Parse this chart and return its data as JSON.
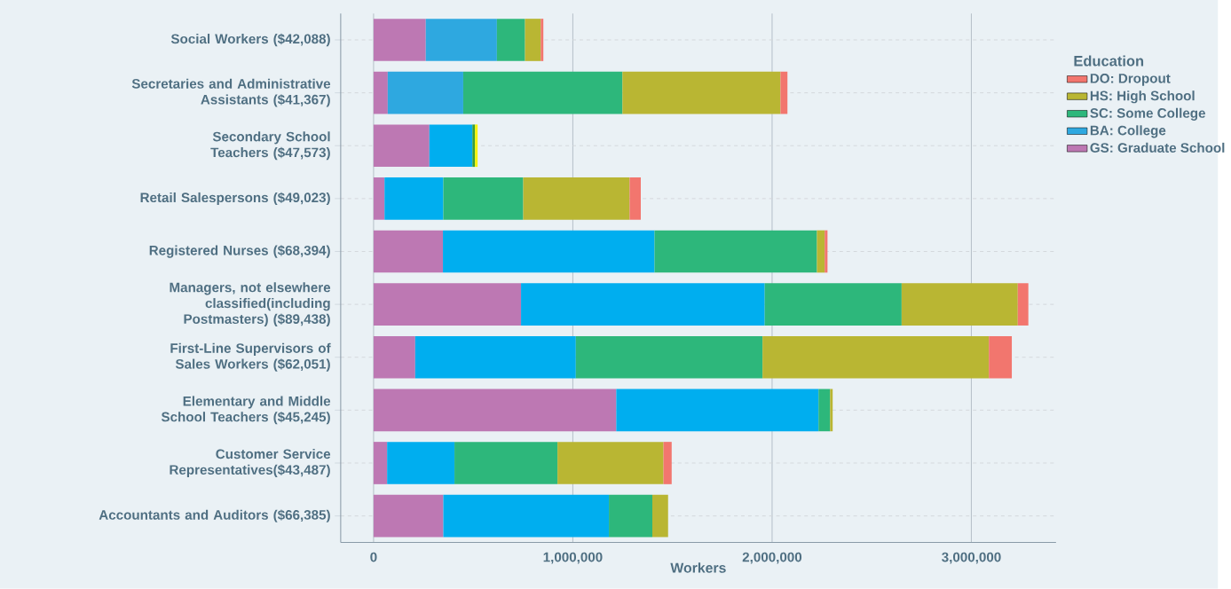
{
  "chart_data": {
    "type": "bar",
    "orientation": "horizontal",
    "stacked": true,
    "xlabel": "Workers",
    "legend_title": "Education",
    "legend": "right",
    "grid": true,
    "categories": [
      "Social Workers ($42,088)",
      "Secretaries and Administrative Assistants ($41,367)",
      "Secondary School Teachers ($47,573)",
      "Retail Salespersons ($49,023)",
      "Registered Nurses ($68,394)",
      "Managers, not elsewhere classified(including Postmasters) ($89,438)",
      "First-Line Supervisors of Sales Workers ($62,051)",
      "Elementary and Middle School Teachers ($45,245)",
      "Customer Service Representatives($43,487)",
      "Accountants and Auditors ($66,385)"
    ],
    "series": [
      {
        "name": "GS: Graduate School",
        "color": "#bd78b3",
        "values": [
          262000,
          71000,
          280000,
          55000,
          348000,
          740000,
          209000,
          1218000,
          68000,
          350000
        ]
      },
      {
        "name": "BA: College",
        "color": "#2ea8e0",
        "colors": [
          "#2ea8e0",
          "#2ea8e0",
          "#00aeef",
          "#00aeef",
          "#00aeef",
          "#00aeef",
          "#00aeef",
          "#00aeef",
          "#00aeef",
          "#00aeef"
        ],
        "values": [
          357000,
          379000,
          216000,
          295000,
          1062000,
          1223000,
          806000,
          1015000,
          338000,
          831000
        ]
      },
      {
        "name": "SC: Some College",
        "color": "#2db77b",
        "colors": [
          "#2db77b",
          "#2db77b",
          "#3a9e3a",
          "#2db77b",
          "#2db77b",
          "#2db77b",
          "#2db77b",
          "#2db77b",
          "#2db77b",
          "#2db77b"
        ],
        "values": [
          141000,
          799000,
          13000,
          401000,
          815000,
          687000,
          937000,
          58000,
          517000,
          218000
        ]
      },
      {
        "name": "HS: High School",
        "color": "#b9b633",
        "colors": [
          "#b9b633",
          "#b9b633",
          "#f5f500",
          "#b9b633",
          "#b9b633",
          "#b9b633",
          "#b9b633",
          "#b9b633",
          "#b9b633",
          "#b9b633"
        ],
        "values": [
          79000,
          793000,
          13000,
          534000,
          39000,
          583000,
          1136000,
          13000,
          532000,
          79000
        ]
      },
      {
        "name": "DO: Dropout",
        "color": "#f2766e",
        "values": [
          13000,
          35000,
          null,
          56000,
          14000,
          53000,
          115000,
          null,
          41000,
          null
        ]
      }
    ],
    "xlim": [
      -165000,
      3425000
    ],
    "xticks": [
      0,
      {
        "value": 1000000,
        "label": "1,000,000"
      },
      {
        "value": 2000000,
        "label": "2,000,000"
      },
      {
        "value": 3000000,
        "label": "3,000,000"
      }
    ]
  }
}
